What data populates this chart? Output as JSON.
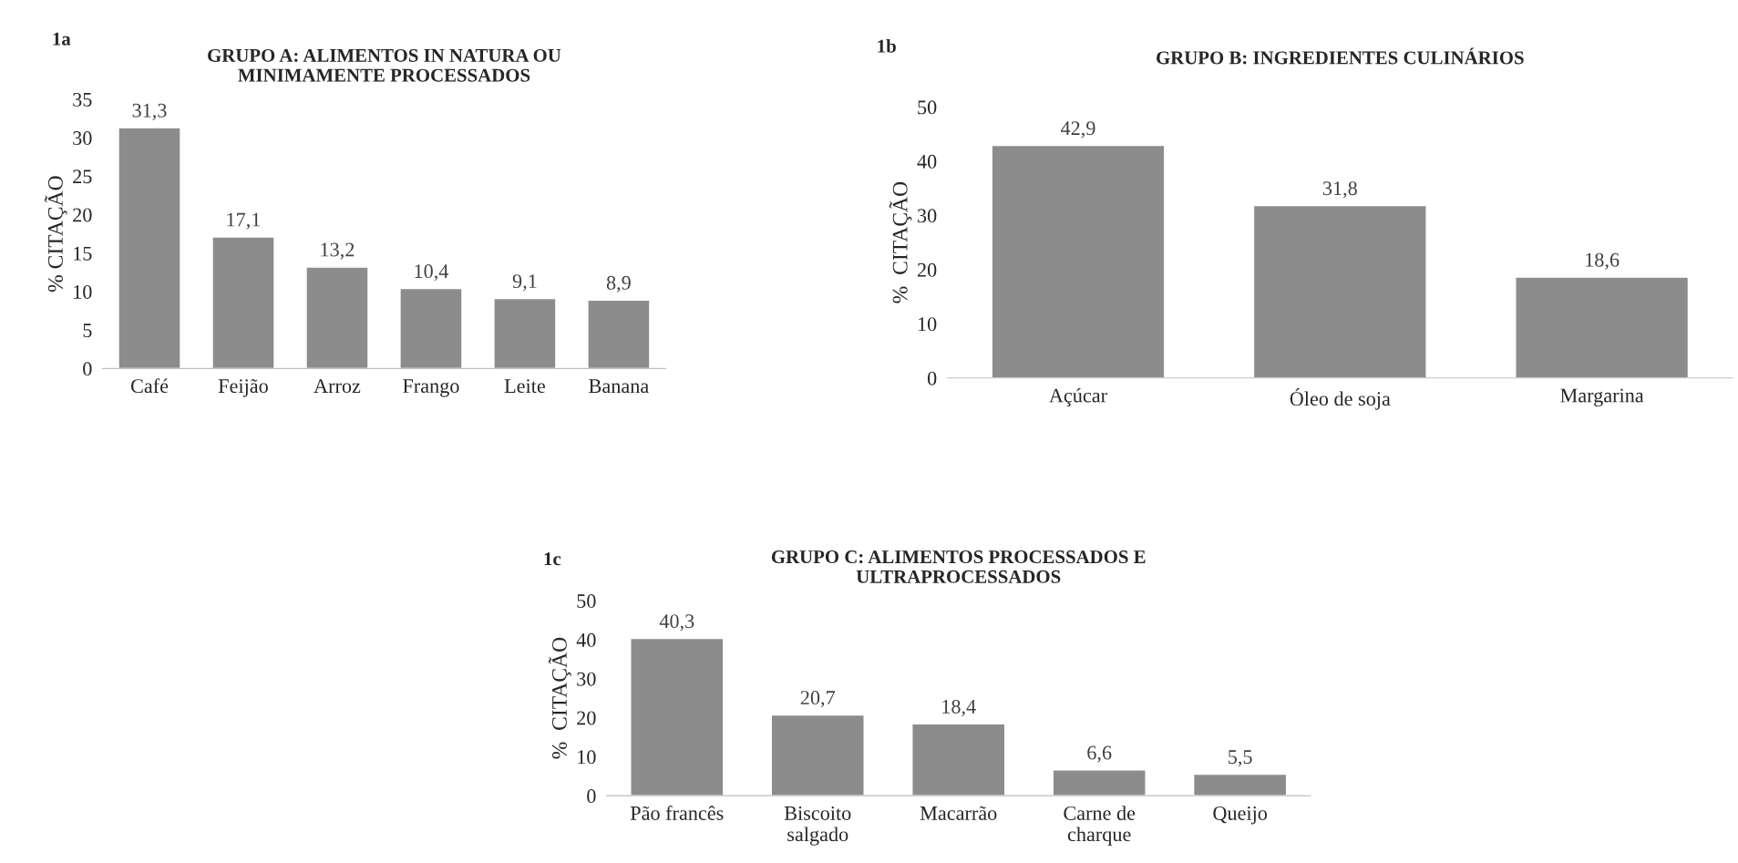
{
  "chart_data": [
    {
      "type": "bar",
      "title": "GRUPO A: ALIMENTOS IN NATURA OU\nMINIMAMENTE PROCESSADOS",
      "ylabel": "% CITAÇÃO",
      "annotations": [
        "1a"
      ],
      "categories": [
        "Café",
        "Feijão",
        "Arroz",
        "Frango",
        "Leite",
        "Banana"
      ],
      "values": [
        31.3,
        17.1,
        13.2,
        10.4,
        9.1,
        8.9
      ],
      "value_labels": [
        "31,3",
        "17,1",
        "13,2",
        "10,4",
        "9,1",
        "8,9"
      ],
      "color": "#8c8c8c",
      "ylim": [
        0,
        35
      ],
      "yticks": [
        0,
        5,
        10,
        15,
        20,
        25,
        30,
        35
      ],
      "grid": false,
      "legend": false
    },
    {
      "type": "bar",
      "title": "GRUPO B: INGREDIENTES CULINÁRIOS",
      "ylabel": "%  CITAÇÃO",
      "annotations": [
        "1b"
      ],
      "categories": [
        "Açúcar",
        "Óleo de soja",
        "Margarina"
      ],
      "values": [
        42.9,
        31.8,
        18.6
      ],
      "value_labels": [
        "42,9",
        "31,8",
        "18,6"
      ],
      "color": "#8c8c8c",
      "ylim": [
        0,
        50
      ],
      "yticks": [
        0,
        10,
        20,
        30,
        40,
        50
      ],
      "grid": false,
      "legend": false
    },
    {
      "type": "bar",
      "title": "GRUPO C: ALIMENTOS PROCESSADOS E\nULTRAPROCESSADOS",
      "ylabel": "%  CITAÇÃO",
      "annotations": [
        "1c"
      ],
      "categories": [
        "Pão francês",
        "Biscoito\nsalgado",
        "Macarrão",
        "Carne de\ncharque",
        "Queijo"
      ],
      "values": [
        40.3,
        20.7,
        18.4,
        6.6,
        5.5
      ],
      "value_labels": [
        "40,3",
        "20,7",
        "18,4",
        "6,6",
        "5,5"
      ],
      "color": "#8c8c8c",
      "ylim": [
        0,
        50
      ],
      "yticks": [
        0,
        10,
        20,
        30,
        40,
        50
      ],
      "grid": false,
      "legend": false
    }
  ]
}
